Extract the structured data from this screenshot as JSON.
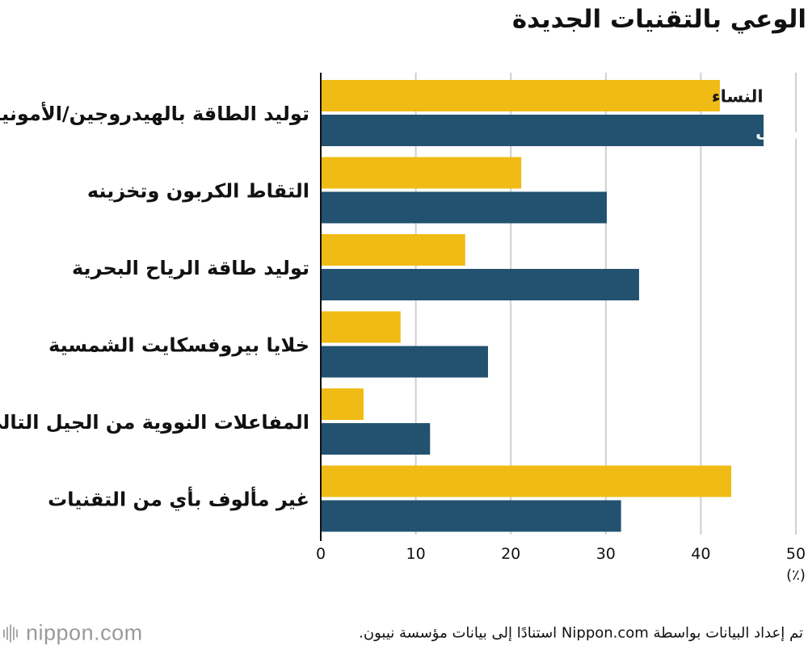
{
  "title": "الوعي بالتقنيات الجديدة",
  "unit_label": "(٪)",
  "source_note": "تم إعداد البيانات بواسطة Nippon.com استنادًا إلى بيانات مؤسسة نيبون.",
  "logo": {
    "name": "nippon",
    "suffix": ".com"
  },
  "colors": {
    "women": "#F0BB14",
    "men": "#22526F",
    "grid": "#cfcfcf",
    "axis": "#111111"
  },
  "chart_data": {
    "type": "bar",
    "orientation": "horizontal",
    "categories": [
      "توليد الطاقة بالهيدروجين/الأمونيا",
      "التقاط الكربون وتخزينه",
      "توليد طاقة الرياح البحرية",
      "خلايا بيروفسكايت الشمسية",
      "المفاعلات النووية من الجيل التالي",
      "غير مألوف بأي من التقنيات"
    ],
    "series": [
      {
        "name": "النساء",
        "color": "#F0BB14",
        "values": [
          42.0,
          21.1,
          15.2,
          8.4,
          4.5,
          43.2
        ]
      },
      {
        "name": "الرجال",
        "color": "#22526F",
        "values": [
          46.6,
          30.1,
          33.5,
          17.6,
          11.5,
          31.6
        ]
      }
    ],
    "xlim": [
      0,
      50
    ],
    "xticks": [
      0,
      10,
      20,
      30,
      40,
      50
    ],
    "grid": true,
    "legend": "inline-first-group"
  }
}
